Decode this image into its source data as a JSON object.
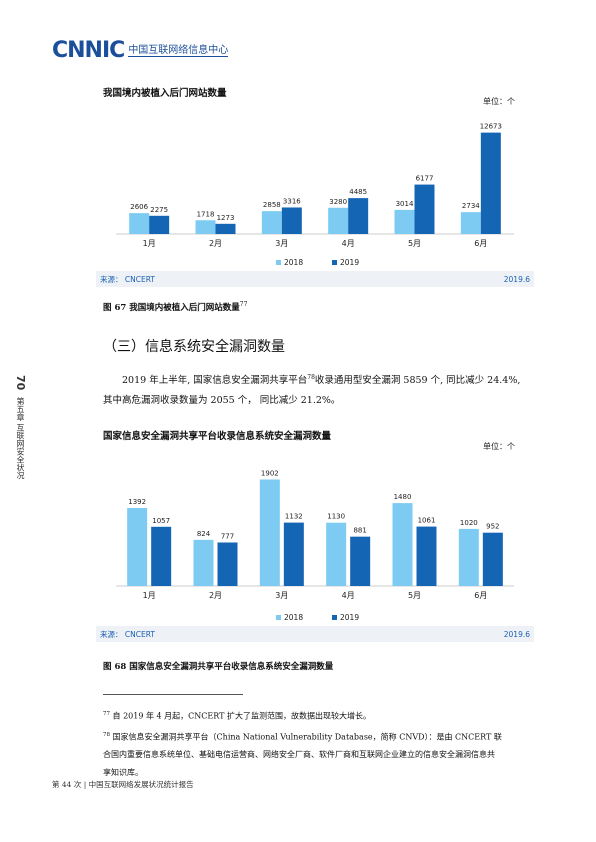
{
  "header": {
    "logo_mark": "CNNIC",
    "logo_cn": "中国互联网络信息中心"
  },
  "colors": {
    "series_2018": "#7dcbf2",
    "series_2019": "#1565b5",
    "accent": "#1b4f9c"
  },
  "chart1": {
    "title": "我国境内被植入后门网站数量",
    "unit": "单位：个",
    "source": "来源： CNCERT",
    "date": "2019.6",
    "caption": "图 67 我国境内被植入后门网站数量",
    "caption_note": "77"
  },
  "section": {
    "title": "（三）信息系统安全漏洞数量"
  },
  "paragraph": {
    "line1_a": "2019 年上半年, 国家信息安全漏洞共享平台",
    "line1_sup": "78",
    "line1_b": "收录通用型安全漏洞 5859 个, 同比减少 24.4%,",
    "line2": "其中高危漏洞收录数量为 2055 个， 同比减少 21.2%。"
  },
  "chart2": {
    "title": "国家信息安全漏洞共享平台收录信息系统安全漏洞数量",
    "unit": "单位：个",
    "source": "来源： CNCERT",
    "date": "2019.6",
    "caption": "图 68 国家信息安全漏洞共享平台收录信息系统安全漏洞数量"
  },
  "chart_data": [
    {
      "type": "bar",
      "categories": [
        "1月",
        "2月",
        "3月",
        "4月",
        "5月",
        "6月"
      ],
      "series": [
        {
          "name": "2018",
          "values": [
            2606,
            1718,
            2858,
            3280,
            3014,
            2734
          ]
        },
        {
          "name": "2019",
          "values": [
            2275,
            1273,
            3316,
            4485,
            6177,
            12673
          ]
        }
      ],
      "title": "我国境内被植入后门网站数量",
      "ylabel": "单位：个",
      "ylim": [
        0,
        13500
      ],
      "legend": "bottom"
    },
    {
      "type": "bar",
      "categories": [
        "1月",
        "2月",
        "3月",
        "4月",
        "5月",
        "6月"
      ],
      "series": [
        {
          "name": "2018",
          "values": [
            1392,
            824,
            1902,
            1130,
            1480,
            1020
          ]
        },
        {
          "name": "2019",
          "values": [
            1057,
            777,
            1132,
            881,
            1061,
            952
          ]
        }
      ],
      "title": "国家信息安全漏洞共享平台收录信息系统安全漏洞数量",
      "ylabel": "单位：个",
      "ylim": [
        0,
        2000
      ],
      "legend": "bottom"
    }
  ],
  "footnotes": {
    "fn77_num": "77",
    "fn77_text": "自 2019 年 4 月起，CNCERT 扩大了监测范围，故数据出现较大增长。",
    "fn78_num": "78",
    "fn78_line1": "国家信息安全漏洞共享平台（China National Vulnerability Database，简称 CNVD）：是由 CNCERT 联",
    "fn78_line2": "合国内重要信息系统单位、基础电信运营商、网络安全厂商、软件厂商和互联网企业建立的信息安全漏洞信息共",
    "fn78_line3": "享知识库。"
  },
  "side": {
    "page_num": "70",
    "chapter": "第五章 互联网安全状况"
  },
  "footer": {
    "text": "第 44 次 | 中国互联网络发展状况统计报告"
  }
}
